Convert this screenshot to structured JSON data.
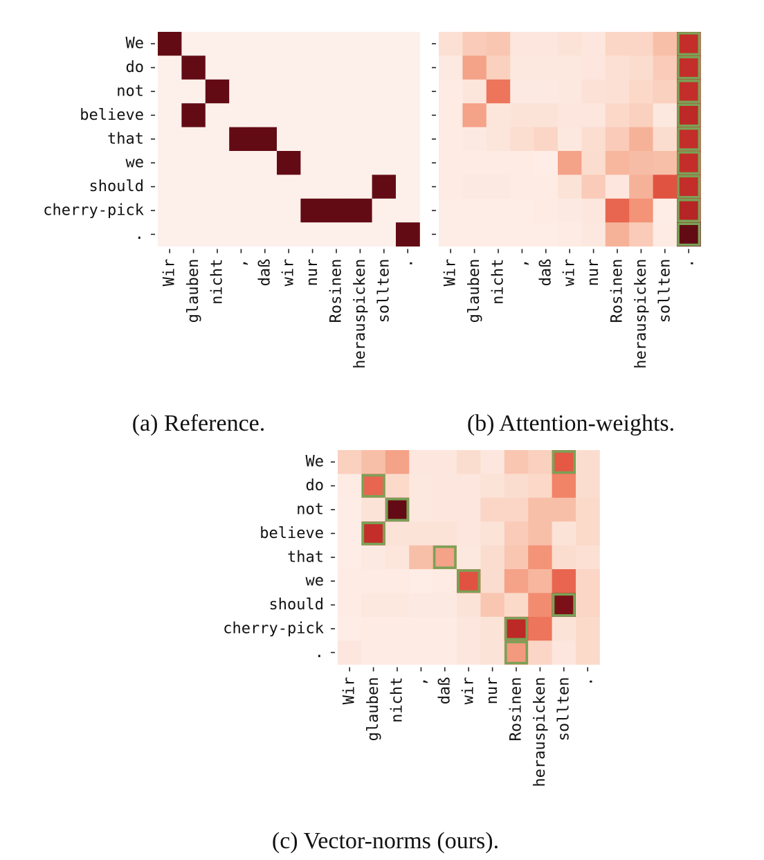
{
  "chart_data": [
    {
      "type": "heatmap",
      "id": "reference",
      "caption": "(a) Reference.",
      "rows": [
        "We",
        "do",
        "not",
        "believe",
        "that",
        "we",
        "should",
        "cherry-pick",
        "."
      ],
      "columns": [
        "Wir",
        "glauben",
        "nicht",
        ",",
        "daß",
        "wir",
        "nur",
        "Rosinen",
        "herauspicken",
        "sollten",
        "."
      ],
      "values": [
        [
          1,
          0,
          0,
          0,
          0,
          0,
          0,
          0,
          0,
          0,
          0
        ],
        [
          0,
          1,
          0,
          0,
          0,
          0,
          0,
          0,
          0,
          0,
          0
        ],
        [
          0,
          0,
          1,
          0,
          0,
          0,
          0,
          0,
          0,
          0,
          0
        ],
        [
          0,
          1,
          0,
          0,
          0,
          0,
          0,
          0,
          0,
          0,
          0
        ],
        [
          0,
          0,
          0,
          1,
          1,
          0,
          0,
          0,
          0,
          0,
          0
        ],
        [
          0,
          0,
          0,
          0,
          0,
          1,
          0,
          0,
          0,
          0,
          0
        ],
        [
          0,
          0,
          0,
          0,
          0,
          0,
          0,
          0,
          0,
          1,
          0
        ],
        [
          0,
          0,
          0,
          0,
          0,
          0,
          1,
          1,
          1,
          0,
          0
        ],
        [
          0,
          0,
          0,
          0,
          0,
          0,
          0,
          0,
          0,
          0,
          1
        ]
      ],
      "highlighted_cells": [],
      "colorscale": "Reds",
      "highlight_color": "#7aa256"
    },
    {
      "type": "heatmap",
      "id": "attention-weights",
      "caption": "(b) Attention-weights.",
      "rows": [
        "We",
        "do",
        "not",
        "believe",
        "that",
        "we",
        "should",
        "cherry-pick",
        "."
      ],
      "columns": [
        "Wir",
        "glauben",
        "nicht",
        ",",
        "daß",
        "wir",
        "nur",
        "Rosinen",
        "herauspicken",
        "sollten",
        "."
      ],
      "values": [
        [
          0.1,
          0.2,
          0.22,
          0.06,
          0.06,
          0.08,
          0.06,
          0.16,
          0.16,
          0.25,
          0.78
        ],
        [
          0.04,
          0.35,
          0.18,
          0.05,
          0.05,
          0.05,
          0.06,
          0.1,
          0.12,
          0.2,
          0.78
        ],
        [
          0.03,
          0.07,
          0.5,
          0.04,
          0.04,
          0.05,
          0.09,
          0.1,
          0.15,
          0.18,
          0.78
        ],
        [
          0.03,
          0.35,
          0.07,
          0.08,
          0.08,
          0.06,
          0.06,
          0.15,
          0.18,
          0.05,
          0.8
        ],
        [
          0.03,
          0.04,
          0.07,
          0.11,
          0.16,
          0.05,
          0.11,
          0.2,
          0.3,
          0.12,
          0.78
        ],
        [
          0.03,
          0.03,
          0.03,
          0.03,
          0.02,
          0.35,
          0.12,
          0.28,
          0.26,
          0.25,
          0.78
        ],
        [
          0.03,
          0.04,
          0.04,
          0.03,
          0.03,
          0.08,
          0.2,
          0.06,
          0.3,
          0.62,
          0.78
        ],
        [
          0.02,
          0.02,
          0.02,
          0.02,
          0.03,
          0.04,
          0.06,
          0.55,
          0.4,
          0.02,
          0.82
        ],
        [
          0.02,
          0.02,
          0.02,
          0.02,
          0.02,
          0.03,
          0.05,
          0.3,
          0.2,
          0.03,
          1.0
        ]
      ],
      "highlighted_cells": [
        [
          0,
          10
        ],
        [
          1,
          10
        ],
        [
          2,
          10
        ],
        [
          3,
          10
        ],
        [
          4,
          10
        ],
        [
          5,
          10
        ],
        [
          6,
          10
        ],
        [
          7,
          10
        ],
        [
          8,
          10
        ]
      ],
      "colorscale": "Reds",
      "highlight_color": "#7aa256"
    },
    {
      "type": "heatmap",
      "id": "vector-norms",
      "caption": "(c) Vector-norms (ours).",
      "rows": [
        "We",
        "do",
        "not",
        "believe",
        "that",
        "we",
        "should",
        "cherry-pick",
        "."
      ],
      "columns": [
        "Wir",
        "glauben",
        "nicht",
        ",",
        "daß",
        "wir",
        "nur",
        "Rosinen",
        "herauspicken",
        "sollten",
        "."
      ],
      "values": [
        [
          0.18,
          0.25,
          0.35,
          0.06,
          0.06,
          0.12,
          0.06,
          0.22,
          0.18,
          0.6,
          0.12
        ],
        [
          0.03,
          0.55,
          0.14,
          0.05,
          0.06,
          0.06,
          0.08,
          0.12,
          0.15,
          0.45,
          0.12
        ],
        [
          0.02,
          0.08,
          1.0,
          0.05,
          0.06,
          0.06,
          0.16,
          0.16,
          0.25,
          0.25,
          0.14
        ],
        [
          0.02,
          0.78,
          0.08,
          0.08,
          0.08,
          0.06,
          0.08,
          0.2,
          0.25,
          0.08,
          0.14
        ],
        [
          0.02,
          0.04,
          0.07,
          0.25,
          0.35,
          0.05,
          0.12,
          0.22,
          0.4,
          0.12,
          0.1
        ],
        [
          0.03,
          0.03,
          0.03,
          0.02,
          0.03,
          0.62,
          0.12,
          0.35,
          0.28,
          0.55,
          0.16
        ],
        [
          0.03,
          0.05,
          0.05,
          0.04,
          0.04,
          0.08,
          0.22,
          0.14,
          0.42,
          0.95,
          0.16
        ],
        [
          0.02,
          0.03,
          0.03,
          0.03,
          0.03,
          0.06,
          0.08,
          0.8,
          0.5,
          0.08,
          0.14
        ],
        [
          0.06,
          0.03,
          0.03,
          0.03,
          0.03,
          0.06,
          0.08,
          0.38,
          0.16,
          0.06,
          0.14
        ]
      ],
      "highlighted_cells": [
        [
          0,
          9
        ],
        [
          1,
          1
        ],
        [
          2,
          2
        ],
        [
          3,
          1
        ],
        [
          4,
          4
        ],
        [
          5,
          5
        ],
        [
          6,
          9
        ],
        [
          7,
          7
        ],
        [
          8,
          7
        ]
      ],
      "colorscale": "Reds",
      "highlight_color": "#7aa256"
    }
  ]
}
